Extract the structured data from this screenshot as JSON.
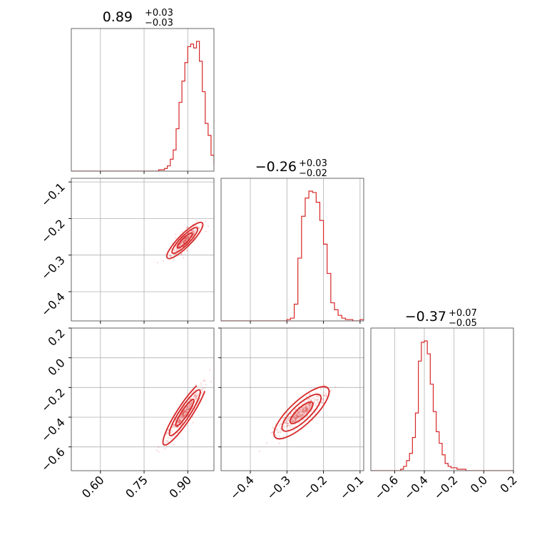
{
  "chart_data": {
    "type": "corner",
    "color": "#d62728",
    "grid": true,
    "parameters": [
      {
        "median": "0.89",
        "plus": "+0.03",
        "minus": "−0.03",
        "range": [
          0.5,
          0.99
        ],
        "ticks": [
          0.6,
          0.75,
          0.9
        ],
        "tick_labels": [
          "0.60",
          "0.75",
          "0.90"
        ]
      },
      {
        "median": "−0.26",
        "plus": "+0.03",
        "minus": "−0.02",
        "range": [
          -0.48,
          -0.09
        ],
        "ticks": [
          -0.4,
          -0.3,
          -0.2,
          -0.1
        ],
        "tick_labels": [
          "−0.4",
          "−0.3",
          "−0.2",
          "−0.1"
        ]
      },
      {
        "median": "−0.37",
        "plus": "+0.07",
        "minus": "−0.05",
        "range": [
          -0.76,
          0.2
        ],
        "ticks": [
          -0.6,
          -0.4,
          -0.2,
          0.0,
          0.2
        ],
        "tick_labels": [
          "−0.6",
          "−0.4",
          "−0.2",
          "0.0",
          "0.2"
        ]
      }
    ],
    "histograms": [
      {
        "param": 0,
        "bin_start": 0.5,
        "bin_width": 0.01,
        "counts": [
          0,
          0,
          0,
          0,
          0,
          0,
          0,
          0,
          0,
          0,
          0,
          0,
          0,
          0,
          0,
          0,
          0,
          0,
          0,
          0,
          0,
          0,
          0,
          0,
          0,
          0,
          0,
          0,
          0,
          0,
          1,
          1,
          2,
          4,
          9,
          16,
          32,
          52,
          68,
          82,
          94,
          96,
          93,
          98,
          83,
          60,
          36,
          27,
          12,
          5
        ]
      },
      {
        "param": 1,
        "bin_start": -0.48,
        "bin_width": 0.01,
        "counts": [
          0,
          0,
          0,
          0,
          0,
          0,
          0,
          0,
          0,
          0,
          0,
          0,
          0,
          0,
          0,
          0,
          0,
          0,
          1,
          2,
          12,
          45,
          75,
          88,
          93,
          92,
          85,
          72,
          55,
          34,
          13,
          8,
          4,
          2,
          1,
          1,
          0,
          0,
          1
        ]
      },
      {
        "param": 2,
        "bin_start": -0.76,
        "bin_width": 0.02,
        "counts": [
          0,
          0,
          0,
          0,
          0,
          0,
          0,
          0,
          0,
          0,
          1,
          3,
          7,
          12,
          23,
          40,
          76,
          89,
          90,
          81,
          60,
          41,
          27,
          19,
          11,
          5,
          3,
          2,
          2,
          1,
          1,
          1,
          0,
          0,
          0,
          0,
          0,
          0,
          0,
          0,
          0,
          0,
          0,
          0,
          0,
          0,
          0,
          0
        ]
      }
    ],
    "scatter_panels": [
      {
        "x_param": 0,
        "y_param": 1,
        "center": [
          0.89,
          -0.26
        ],
        "slope": 0.8,
        "spread_x": 0.025,
        "spread_perp": 0.01
      },
      {
        "x_param": 0,
        "y_param": 2,
        "center": [
          0.89,
          -0.37
        ],
        "slope": 3.0,
        "spread_x": 0.03,
        "spread_perp": 0.012
      },
      {
        "x_param": 1,
        "y_param": 2,
        "center": [
          -0.26,
          -0.37
        ],
        "slope": 2.3,
        "spread_x": 0.03,
        "spread_perp": 0.015
      }
    ]
  }
}
